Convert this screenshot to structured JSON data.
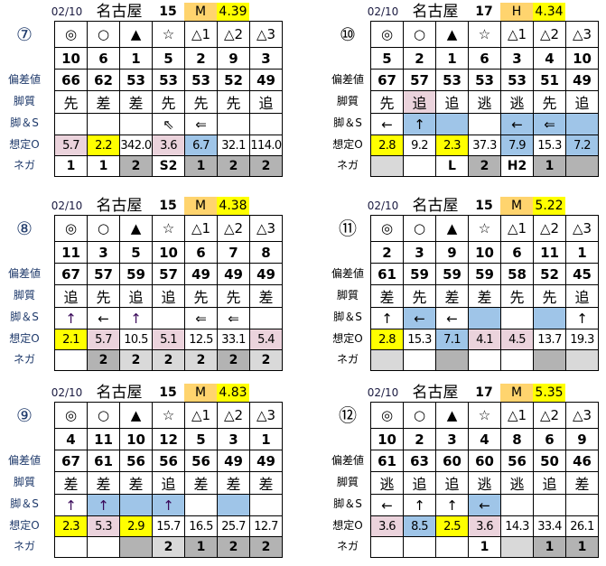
{
  "labels": [
    "偏差値",
    "脚質",
    "脚＆S",
    "想定O",
    "ネガ"
  ],
  "marks": [
    "◎",
    "○",
    "▲",
    "☆",
    "△1",
    "△2",
    "△3"
  ],
  "colors": {
    "pink": "#EBD3DC",
    "yellow": "#FFFF00",
    "blue": "#9FC5E8",
    "gray": "#B3B3B3",
    "lightgray": "#D9D9D9",
    "grade": "#FFD46E",
    "value": "#FFFF00"
  },
  "panels": [
    {
      "race": "⑦",
      "date": "02/10",
      "venue": "名古屋",
      "count": "15",
      "grade": "M",
      "value": "4.39",
      "label_color": "#1F3A6B",
      "arrow_color": "#3A0A5A",
      "numbers": [
        "10",
        "6",
        "1",
        "5",
        "2",
        "9",
        "3"
      ],
      "deviation": [
        "66",
        "62",
        "53",
        "53",
        "53",
        "52",
        "49"
      ],
      "style": [
        "先",
        "差",
        "差",
        "先",
        "先",
        "先",
        "追"
      ],
      "style_bg": [
        "",
        "",
        "",
        "",
        "",
        "",
        ""
      ],
      "arrows": [
        "",
        "",
        "",
        "⇖",
        "⇐",
        "",
        ""
      ],
      "arrows_bg": [
        "",
        "",
        "",
        "",
        "",
        "",
        ""
      ],
      "odds": [
        "5.7",
        "2.2",
        "342.0",
        "3.6",
        "6.7",
        "32.1",
        "114.0"
      ],
      "odds_bg": [
        "pink",
        "yellow",
        "",
        "pink",
        "blue",
        "",
        ""
      ],
      "nega": [
        "1",
        "1",
        "2",
        "S2",
        "1",
        "2",
        "2"
      ],
      "nega_bg": [
        "",
        "",
        "gray",
        "",
        "gray",
        "gray",
        "gray"
      ]
    },
    {
      "race": "⑩",
      "date": "02/10",
      "venue": "名古屋",
      "count": "17",
      "grade": "H",
      "value": "4.34",
      "label_color": "#000000",
      "arrow_color": "#000000",
      "numbers": [
        "5",
        "2",
        "1",
        "6",
        "3",
        "4",
        "10"
      ],
      "deviation": [
        "67",
        "57",
        "53",
        "53",
        "53",
        "51",
        "49"
      ],
      "style": [
        "先",
        "追",
        "追",
        "逃",
        "逃",
        "先",
        "追"
      ],
      "style_bg": [
        "",
        "pink",
        "",
        "",
        "",
        "",
        ""
      ],
      "arrows": [
        "←",
        "↑",
        "",
        "",
        "←",
        "⇐",
        ""
      ],
      "arrows_bg": [
        "",
        "blue",
        "blue",
        "",
        "blue",
        "blue",
        "blue"
      ],
      "odds": [
        "2.8",
        "9.2",
        "2.3",
        "37.3",
        "7.9",
        "15.3",
        "7.2"
      ],
      "odds_bg": [
        "yellow",
        "",
        "yellow",
        "",
        "blue",
        "",
        "blue"
      ],
      "nega": [
        "",
        "",
        "L",
        "2",
        "H2",
        "1",
        ""
      ],
      "nega_bg": [
        "lightgray",
        "",
        "",
        "gray",
        "",
        "gray",
        "gray"
      ]
    },
    {
      "race": "⑧",
      "date": "02/10",
      "venue": "名古屋",
      "count": "15",
      "grade": "M",
      "value": "4.38",
      "label_color": "#1F3A6B",
      "arrow_color": "#3A0A5A",
      "numbers": [
        "11",
        "3",
        "5",
        "10",
        "6",
        "7",
        "8"
      ],
      "deviation": [
        "67",
        "57",
        "59",
        "57",
        "49",
        "49",
        "49"
      ],
      "style": [
        "追",
        "先",
        "追",
        "追",
        "先",
        "先",
        "差"
      ],
      "style_bg": [
        "",
        "",
        "",
        "",
        "",
        "",
        ""
      ],
      "arrows": [
        "↑",
        "←",
        "↑",
        "",
        "⇐",
        "⇐",
        ""
      ],
      "arrows_bg": [
        "",
        "",
        "",
        "",
        "",
        "",
        ""
      ],
      "odds": [
        "2.1",
        "5.7",
        "10.5",
        "5.1",
        "12.5",
        "33.1",
        "5.4"
      ],
      "odds_bg": [
        "yellow",
        "pink",
        "",
        "pink",
        "",
        "",
        "pink"
      ],
      "nega": [
        "",
        "2",
        "2",
        "2",
        "2",
        "2",
        "2"
      ],
      "nega_bg": [
        "",
        "gray",
        "lightgray",
        "lightgray",
        "lightgray",
        "gray",
        "lightgray"
      ]
    },
    {
      "race": "⑪",
      "date": "02/10",
      "venue": "名古屋",
      "count": "15",
      "grade": "M",
      "value": "5.22",
      "label_color": "#000000",
      "arrow_color": "#000000",
      "numbers": [
        "2",
        "3",
        "9",
        "10",
        "6",
        "11",
        "1"
      ],
      "deviation": [
        "61",
        "59",
        "59",
        "59",
        "58",
        "52",
        "45"
      ],
      "style": [
        "差",
        "先",
        "差",
        "差",
        "先",
        "先",
        "追"
      ],
      "style_bg": [
        "",
        "",
        "",
        "",
        "",
        "",
        ""
      ],
      "arrows": [
        "↑",
        "←",
        "←",
        "",
        "",
        "",
        "↑"
      ],
      "arrows_bg": [
        "",
        "blue",
        "",
        "blue",
        "",
        "blue",
        ""
      ],
      "odds": [
        "2.8",
        "15.3",
        "7.1",
        "4.1",
        "4.5",
        "13.7",
        "19.3"
      ],
      "odds_bg": [
        "yellow",
        "",
        "blue",
        "pink",
        "pink",
        "",
        ""
      ],
      "nega": [
        "",
        "",
        "",
        "",
        "",
        "",
        ""
      ],
      "nega_bg": [
        "lightgray",
        "",
        "gray",
        "",
        "",
        "gray",
        "lightgray"
      ]
    },
    {
      "race": "⑨",
      "date": "02/10",
      "venue": "名古屋",
      "count": "15",
      "grade": "M",
      "value": "4.83",
      "label_color": "#1F3A6B",
      "arrow_color": "#3A0A5A",
      "numbers": [
        "4",
        "11",
        "10",
        "12",
        "5",
        "3",
        "1"
      ],
      "deviation": [
        "67",
        "61",
        "56",
        "56",
        "56",
        "49",
        "49"
      ],
      "style": [
        "差",
        "差",
        "差",
        "追",
        "差",
        "差",
        "差"
      ],
      "style_bg": [
        "",
        "",
        "",
        "",
        "",
        "",
        ""
      ],
      "arrows": [
        "↑",
        "↑",
        "",
        "↑",
        "",
        "",
        ""
      ],
      "arrows_bg": [
        "",
        "blue",
        "blue",
        "blue",
        "",
        "blue",
        ""
      ],
      "odds": [
        "2.3",
        "5.3",
        "2.9",
        "15.7",
        "16.5",
        "25.7",
        "12.7"
      ],
      "odds_bg": [
        "yellow",
        "pink",
        "yellow",
        "",
        "",
        "",
        ""
      ],
      "nega": [
        "",
        "",
        "",
        "2",
        "1",
        "2",
        "2"
      ],
      "nega_bg": [
        "",
        "",
        "gray",
        "lightgray",
        "gray",
        "gray",
        "gray"
      ]
    },
    {
      "race": "⑫",
      "date": "02/10",
      "venue": "名古屋",
      "count": "17",
      "grade": "M",
      "value": "5.35",
      "label_color": "#000000",
      "arrow_color": "#000000",
      "numbers": [
        "10",
        "2",
        "3",
        "4",
        "8",
        "6",
        "9"
      ],
      "deviation": [
        "61",
        "63",
        "60",
        "60",
        "56",
        "50",
        "46"
      ],
      "style": [
        "逃",
        "追",
        "追",
        "逃",
        "逃",
        "追",
        "差"
      ],
      "style_bg": [
        "",
        "",
        "",
        "",
        "",
        "",
        ""
      ],
      "arrows": [
        "←",
        "↑",
        "↑",
        "←",
        "",
        "",
        ""
      ],
      "arrows_bg": [
        "",
        "",
        "",
        "blue",
        "",
        "",
        ""
      ],
      "odds": [
        "3.6",
        "8.5",
        "2.5",
        "3.6",
        "14.3",
        "33.4",
        "26.1"
      ],
      "odds_bg": [
        "pink",
        "blue",
        "yellow",
        "pink",
        "",
        "",
        ""
      ],
      "nega": [
        "",
        "",
        "",
        "1",
        "",
        "1",
        "1"
      ],
      "nega_bg": [
        "",
        "",
        "",
        "",
        "lightgray",
        "gray",
        "gray"
      ]
    }
  ]
}
